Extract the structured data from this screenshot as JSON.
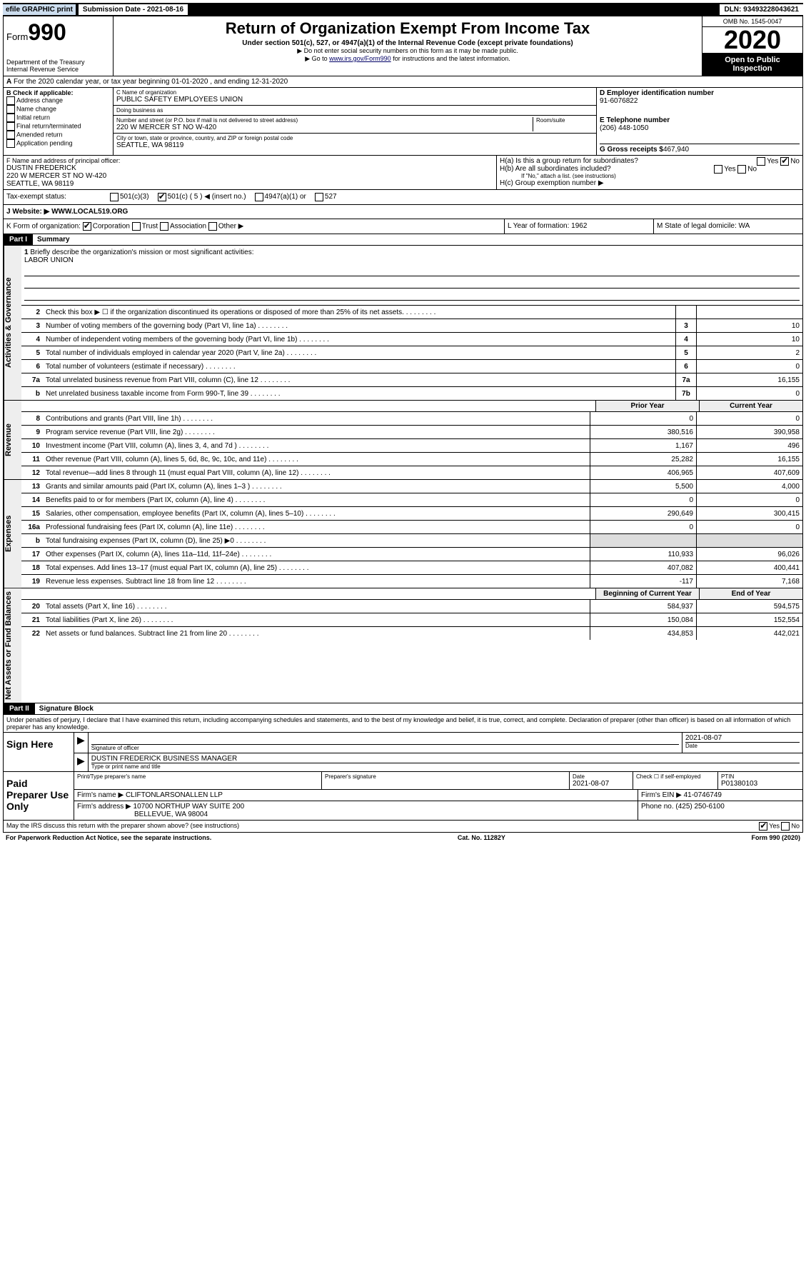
{
  "top": {
    "efile": "efile GRAPHIC print",
    "submission_label": "Submission Date - 2021-08-16",
    "dln": "DLN: 93493228043621"
  },
  "header": {
    "form_prefix": "Form",
    "form_num": "990",
    "title": "Return of Organization Exempt From Income Tax",
    "subtitle": "Under section 501(c), 527, or 4947(a)(1) of the Internal Revenue Code (except private foundations)",
    "note1": "▶ Do not enter social security numbers on this form as it may be made public.",
    "note2_pre": "▶ Go to ",
    "note2_link": "www.irs.gov/Form990",
    "note2_post": " for instructions and the latest information.",
    "dept": "Department of the Treasury",
    "irs": "Internal Revenue Service",
    "omb": "OMB No. 1545-0047",
    "year": "2020",
    "open": "Open to Public Inspection"
  },
  "rowA": "For the 2020 calendar year, or tax year beginning 01-01-2020    , and ending 12-31-2020",
  "blockB": {
    "label": "B Check if applicable:",
    "opts": [
      "Address change",
      "Name change",
      "Initial return",
      "Final return/terminated",
      "Amended return",
      "Application pending"
    ]
  },
  "blockC": {
    "name_label": "C Name of organization",
    "name": "PUBLIC SAFETY EMPLOYEES UNION",
    "dba_label": "Doing business as",
    "addr_label": "Number and street (or P.O. box if mail is not delivered to street address)",
    "room_label": "Room/suite",
    "addr": "220 W MERCER ST NO W-420",
    "city_label": "City or town, state or province, country, and ZIP or foreign postal code",
    "city": "SEATTLE, WA  98119"
  },
  "blockD": {
    "d_label": "D Employer identification number",
    "ein": "91-6076822",
    "e_label": "E Telephone number",
    "phone": "(206) 448-1050",
    "g_label": "G Gross receipts $",
    "g_val": "467,940"
  },
  "blockF": {
    "label": "F  Name and address of principal officer:",
    "name": "DUSTIN FREDERICK",
    "addr1": "220 W MERCER ST NO W-420",
    "addr2": "SEATTLE, WA  98119"
  },
  "blockH": {
    "ha": "H(a)  Is this a group return for subordinates?",
    "hb": "H(b)  Are all subordinates included?",
    "hb_note": "If \"No,\" attach a list. (see instructions)",
    "hc": "H(c)  Group exemption number ▶",
    "yes": "Yes",
    "no": "No"
  },
  "tax": {
    "label": "Tax-exempt status:",
    "o1": "501(c)(3)",
    "o2": "501(c) ( 5 ) ◀ (insert no.)",
    "o3": "4947(a)(1) or",
    "o4": "527"
  },
  "website": {
    "label": "J   Website: ▶",
    "val": "WWW.LOCAL519.ORG"
  },
  "klm": {
    "k": "K Form of organization:",
    "k_opts": [
      "Corporation",
      "Trust",
      "Association",
      "Other ▶"
    ],
    "l": "L Year of formation: 1962",
    "m": "M State of legal domicile: WA"
  },
  "part1": {
    "hdr": "Part I",
    "title": "Summary"
  },
  "briefly": {
    "num": "1",
    "text": "Briefly describe the organization's mission or most significant activities:",
    "val": "LABOR UNION"
  },
  "gov_lines": [
    {
      "n": "2",
      "d": "Check this box ▶ ☐  if the organization discontinued its operations or disposed of more than 25% of its net assets.",
      "box": "",
      "v": ""
    },
    {
      "n": "3",
      "d": "Number of voting members of the governing body (Part VI, line 1a)",
      "box": "3",
      "v": "10"
    },
    {
      "n": "4",
      "d": "Number of independent voting members of the governing body (Part VI, line 1b)",
      "box": "4",
      "v": "10"
    },
    {
      "n": "5",
      "d": "Total number of individuals employed in calendar year 2020 (Part V, line 2a)",
      "box": "5",
      "v": "2"
    },
    {
      "n": "6",
      "d": "Total number of volunteers (estimate if necessary)",
      "box": "6",
      "v": "0"
    },
    {
      "n": "7a",
      "d": "Total unrelated business revenue from Part VIII, column (C), line 12",
      "box": "7a",
      "v": "16,155"
    },
    {
      "n": "b",
      "d": "Net unrelated business taxable income from Form 990-T, line 39",
      "box": "7b",
      "v": "0"
    }
  ],
  "rev_hdr": {
    "prior": "Prior Year",
    "current": "Current Year"
  },
  "rev_lines": [
    {
      "n": "8",
      "d": "Contributions and grants (Part VIII, line 1h)",
      "p": "0",
      "c": "0"
    },
    {
      "n": "9",
      "d": "Program service revenue (Part VIII, line 2g)",
      "p": "380,516",
      "c": "390,958"
    },
    {
      "n": "10",
      "d": "Investment income (Part VIII, column (A), lines 3, 4, and 7d )",
      "p": "1,167",
      "c": "496"
    },
    {
      "n": "11",
      "d": "Other revenue (Part VIII, column (A), lines 5, 6d, 8c, 9c, 10c, and 11e)",
      "p": "25,282",
      "c": "16,155"
    },
    {
      "n": "12",
      "d": "Total revenue—add lines 8 through 11 (must equal Part VIII, column (A), line 12)",
      "p": "406,965",
      "c": "407,609"
    }
  ],
  "exp_lines": [
    {
      "n": "13",
      "d": "Grants and similar amounts paid (Part IX, column (A), lines 1–3 )",
      "p": "5,500",
      "c": "4,000"
    },
    {
      "n": "14",
      "d": "Benefits paid to or for members (Part IX, column (A), line 4)",
      "p": "0",
      "c": "0"
    },
    {
      "n": "15",
      "d": "Salaries, other compensation, employee benefits (Part IX, column (A), lines 5–10)",
      "p": "290,649",
      "c": "300,415"
    },
    {
      "n": "16a",
      "d": "Professional fundraising fees (Part IX, column (A), line 11e)",
      "p": "0",
      "c": "0"
    },
    {
      "n": "b",
      "d": "Total fundraising expenses (Part IX, column (D), line 25) ▶0",
      "p": "",
      "c": "",
      "shade": true
    },
    {
      "n": "17",
      "d": "Other expenses (Part IX, column (A), lines 11a–11d, 11f–24e)",
      "p": "110,933",
      "c": "96,026"
    },
    {
      "n": "18",
      "d": "Total expenses. Add lines 13–17 (must equal Part IX, column (A), line 25)",
      "p": "407,082",
      "c": "400,441"
    },
    {
      "n": "19",
      "d": "Revenue less expenses. Subtract line 18 from line 12",
      "p": "-117",
      "c": "7,168"
    }
  ],
  "na_hdr": {
    "begin": "Beginning of Current Year",
    "end": "End of Year"
  },
  "na_lines": [
    {
      "n": "20",
      "d": "Total assets (Part X, line 16)",
      "p": "584,937",
      "c": "594,575"
    },
    {
      "n": "21",
      "d": "Total liabilities (Part X, line 26)",
      "p": "150,084",
      "c": "152,554"
    },
    {
      "n": "22",
      "d": "Net assets or fund balances. Subtract line 21 from line 20",
      "p": "434,853",
      "c": "442,021"
    }
  ],
  "part2": {
    "hdr": "Part II",
    "title": "Signature Block"
  },
  "perjury": "Under penalties of perjury, I declare that I have examined this return, including accompanying schedules and statements, and to the best of my knowledge and belief, it is true, correct, and complete. Declaration of preparer (other than officer) is based on all information of which preparer has any knowledge.",
  "sign": {
    "label": "Sign Here",
    "sig_label": "Signature of officer",
    "date": "2021-08-07",
    "date_label": "Date",
    "name": "DUSTIN FREDERICK  BUSINESS MANAGER",
    "name_label": "Type or print name and title"
  },
  "paid": {
    "label": "Paid Preparer Use Only",
    "col1": "Print/Type preparer's name",
    "col2": "Preparer's signature",
    "col3": "Date",
    "date": "2021-08-07",
    "check": "Check ☐ if self-employed",
    "ptin_label": "PTIN",
    "ptin": "P01380103",
    "firm_name_label": "Firm's name     ▶",
    "firm_name": "CLIFTONLARSONALLEN LLP",
    "firm_ein": "Firm's EIN ▶ 41-0746749",
    "firm_addr_label": "Firm's address ▶",
    "firm_addr1": "10700 NORTHUP WAY SUITE 200",
    "firm_addr2": "BELLEVUE, WA  98004",
    "phone": "Phone no. (425) 250-6100"
  },
  "discuss": {
    "text": "May the IRS discuss this return with the preparer shown above? (see instructions)",
    "yes": "Yes",
    "no": "No"
  },
  "footer": {
    "left": "For Paperwork Reduction Act Notice, see the separate instructions.",
    "center": "Cat. No. 11282Y",
    "right": "Form 990 (2020)"
  },
  "side_labels": {
    "gov": "Activities & Governance",
    "rev": "Revenue",
    "exp": "Expenses",
    "na": "Net Assets or Fund Balances"
  }
}
